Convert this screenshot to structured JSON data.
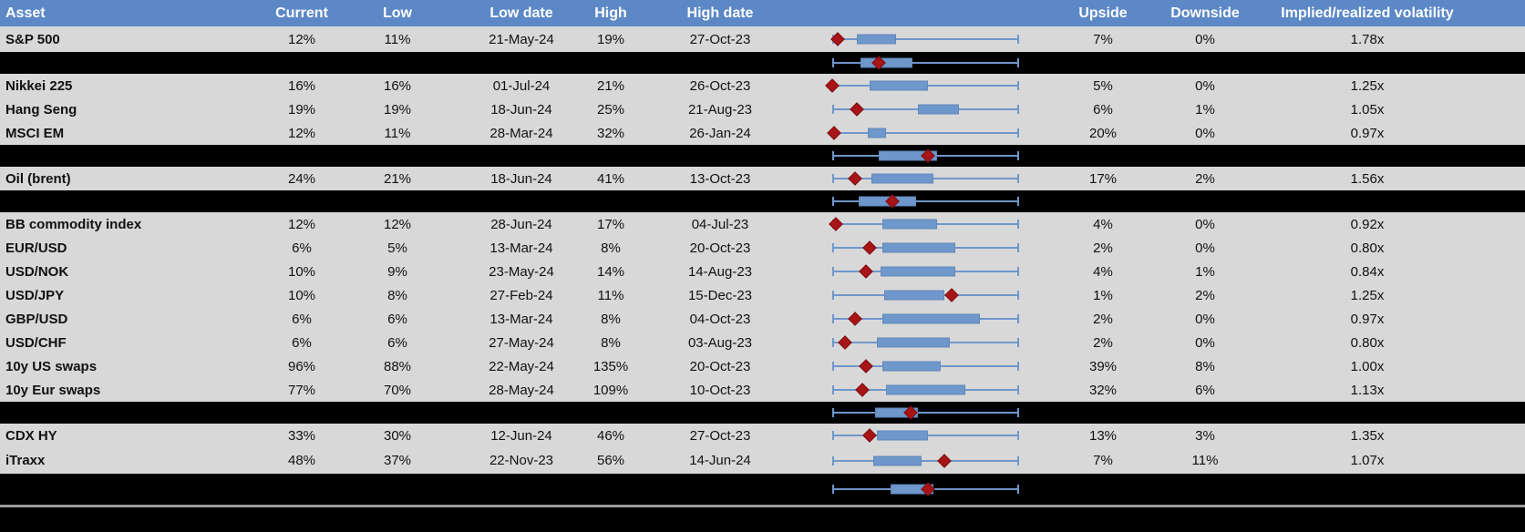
{
  "colors": {
    "header_bg": "#5C88C6",
    "header_text": "#FFFFFF",
    "row_bg": "#D8D8D8",
    "separator_bg": "#000000",
    "box_blue": "#6E97CB",
    "diamond_red": "#A81517",
    "divider_gray": "#9B9B9B",
    "cell_text": "#000000"
  },
  "chart_data": {
    "type": "table",
    "title": "",
    "columns": [
      "Asset",
      "Current",
      "Low",
      "Low date",
      "High",
      "High date",
      "",
      "Upside",
      "Downside",
      "Implied/realized volatility"
    ],
    "embedded_plot": {
      "type": "boxplot-horizontal",
      "description": "Per-row horizontal box-and-whisker of volatility range with dark-red diamond marking current level; whiskers span full normalized range 0-1",
      "axis_range": [
        0,
        1
      ],
      "marker": "current"
    },
    "rows": [
      {
        "type": "data",
        "asset": "S&P 500",
        "current": "12%",
        "low": "11%",
        "low_date": "21-May-24",
        "high": "19%",
        "high_date": "27-Oct-23",
        "upside": "7%",
        "downside": "0%",
        "implied_realized": "1.78x",
        "plot": {
          "diamond": 0.03,
          "box": [
            0.13,
            0.34
          ]
        }
      },
      {
        "type": "separator",
        "plot": {
          "diamond": 0.25,
          "box": [
            0.15,
            0.43
          ]
        }
      },
      {
        "type": "data",
        "asset": "Nikkei 225",
        "current": "16%",
        "low": "16%",
        "low_date": "01-Jul-24",
        "high": "21%",
        "high_date": "26-Oct-23",
        "upside": "5%",
        "downside": "0%",
        "implied_realized": "1.25x",
        "plot": {
          "diamond": 0.0,
          "box": [
            0.2,
            0.51
          ]
        }
      },
      {
        "type": "data",
        "asset": "Hang Seng",
        "current": "19%",
        "low": "19%",
        "low_date": "18-Jun-24",
        "high": "25%",
        "high_date": "21-Aug-23",
        "upside": "6%",
        "downside": "1%",
        "implied_realized": "1.05x",
        "plot": {
          "diamond": 0.13,
          "box": [
            0.46,
            0.68
          ]
        }
      },
      {
        "type": "data",
        "asset": "MSCI EM",
        "current": "12%",
        "low": "11%",
        "low_date": "28-Mar-24",
        "high": "32%",
        "high_date": "26-Jan-24",
        "upside": "20%",
        "downside": "0%",
        "implied_realized": "0.97x",
        "plot": {
          "diamond": 0.01,
          "box": [
            0.19,
            0.29
          ]
        }
      },
      {
        "type": "separator",
        "plot": {
          "diamond": 0.51,
          "box": [
            0.25,
            0.56
          ]
        }
      },
      {
        "type": "data",
        "asset": "Oil (brent)",
        "current": "24%",
        "low": "21%",
        "low_date": "18-Jun-24",
        "high": "41%",
        "high_date": "13-Oct-23",
        "upside": "17%",
        "downside": "2%",
        "implied_realized": "1.56x",
        "plot": {
          "diamond": 0.12,
          "box": [
            0.21,
            0.54
          ]
        }
      },
      {
        "type": "separator",
        "plot": {
          "diamond": 0.32,
          "box": [
            0.14,
            0.45
          ]
        }
      },
      {
        "type": "data",
        "asset": "BB commodity index",
        "current": "12%",
        "low": "12%",
        "low_date": "28-Jun-24",
        "high": "17%",
        "high_date": "04-Jul-23",
        "upside": "4%",
        "downside": "0%",
        "implied_realized": "0.92x",
        "plot": {
          "diamond": 0.02,
          "box": [
            0.27,
            0.56
          ]
        }
      },
      {
        "type": "data",
        "asset": "EUR/USD",
        "current": "6%",
        "low": "5%",
        "low_date": "13-Mar-24",
        "high": "8%",
        "high_date": "20-Oct-23",
        "upside": "2%",
        "downside": "0%",
        "implied_realized": "0.80x",
        "plot": {
          "diamond": 0.2,
          "box": [
            0.27,
            0.66
          ]
        }
      },
      {
        "type": "data",
        "asset": "USD/NOK",
        "current": "10%",
        "low": "9%",
        "low_date": "23-May-24",
        "high": "14%",
        "high_date": "14-Aug-23",
        "upside": "4%",
        "downside": "1%",
        "implied_realized": "0.84x",
        "plot": {
          "diamond": 0.18,
          "box": [
            0.26,
            0.66
          ]
        }
      },
      {
        "type": "data",
        "asset": "USD/JPY",
        "current": "10%",
        "low": "8%",
        "low_date": "27-Feb-24",
        "high": "11%",
        "high_date": "15-Dec-23",
        "upside": "1%",
        "downside": "2%",
        "implied_realized": "1.25x",
        "plot": {
          "diamond": 0.64,
          "box": [
            0.28,
            0.6
          ]
        }
      },
      {
        "type": "data",
        "asset": "GBP/USD",
        "current": "6%",
        "low": "6%",
        "low_date": "13-Mar-24",
        "high": "8%",
        "high_date": "04-Oct-23",
        "upside": "2%",
        "downside": "0%",
        "implied_realized": "0.97x",
        "plot": {
          "diamond": 0.12,
          "box": [
            0.27,
            0.79
          ]
        }
      },
      {
        "type": "data",
        "asset": "USD/CHF",
        "current": "6%",
        "low": "6%",
        "low_date": "27-May-24",
        "high": "8%",
        "high_date": "03-Aug-23",
        "upside": "2%",
        "downside": "0%",
        "implied_realized": "0.80x",
        "plot": {
          "diamond": 0.07,
          "box": [
            0.24,
            0.63
          ]
        }
      },
      {
        "type": "data",
        "asset": "10y US swaps",
        "current": "96%",
        "low": "88%",
        "low_date": "22-May-24",
        "high": "135%",
        "high_date": "20-Oct-23",
        "upside": "39%",
        "downside": "8%",
        "implied_realized": "1.00x",
        "plot": {
          "diamond": 0.18,
          "box": [
            0.27,
            0.58
          ]
        }
      },
      {
        "type": "data",
        "asset": "10y Eur swaps",
        "current": "77%",
        "low": "70%",
        "low_date": "28-May-24",
        "high": "109%",
        "high_date": "10-Oct-23",
        "upside": "32%",
        "downside": "6%",
        "implied_realized": "1.13x",
        "plot": {
          "diamond": 0.16,
          "box": [
            0.29,
            0.71
          ]
        }
      },
      {
        "type": "separator",
        "plot": {
          "diamond": 0.42,
          "box": [
            0.23,
            0.46
          ]
        }
      },
      {
        "type": "data",
        "asset": "CDX HY",
        "current": "33%",
        "low": "30%",
        "low_date": "12-Jun-24",
        "high": "46%",
        "high_date": "27-Oct-23",
        "upside": "13%",
        "downside": "3%",
        "implied_realized": "1.35x",
        "plot": {
          "diamond": 0.2,
          "box": [
            0.24,
            0.51
          ]
        }
      },
      {
        "type": "data",
        "asset": "iTraxx",
        "current": "48%",
        "low": "37%",
        "low_date": "22-Nov-23",
        "high": "56%",
        "high_date": "14-Jun-24",
        "upside": "7%",
        "downside": "11%",
        "implied_realized": "1.07x",
        "plot": {
          "diamond": 0.6,
          "box": [
            0.22,
            0.48
          ]
        }
      },
      {
        "type": "separator",
        "plot": {
          "diamond": 0.51,
          "box": [
            0.31,
            0.54
          ]
        }
      }
    ]
  }
}
